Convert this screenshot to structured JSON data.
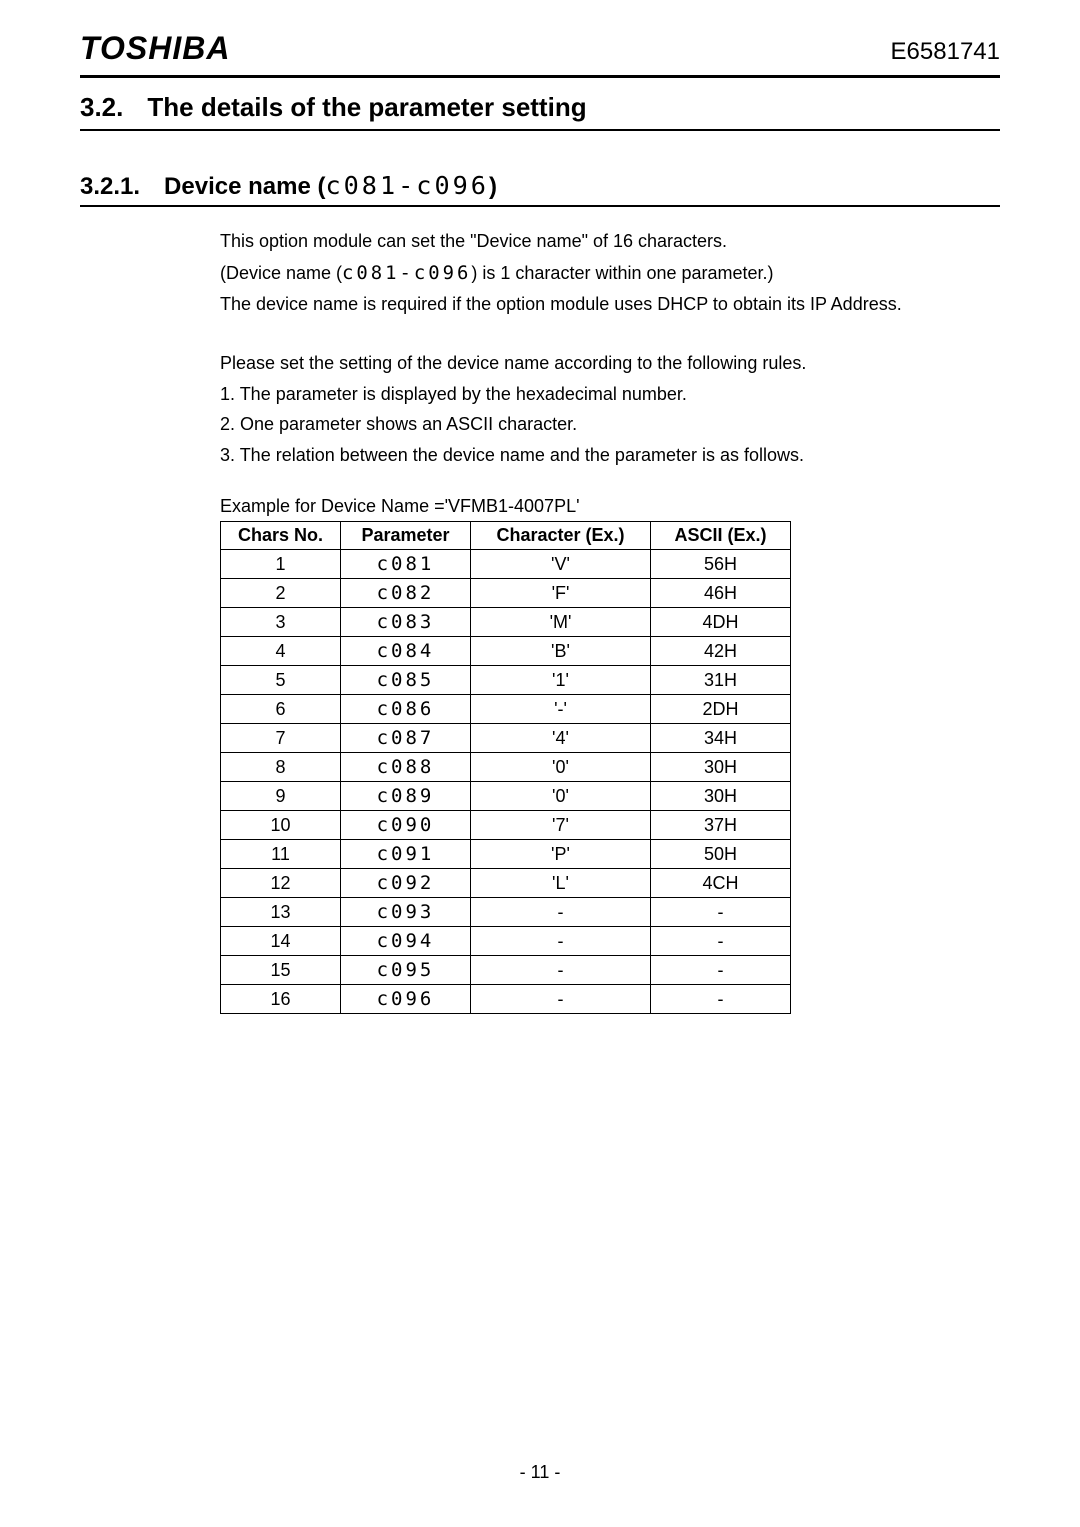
{
  "header": {
    "brand": "TOSHIBA",
    "doc_number": "E6581741"
  },
  "section": {
    "number": "3.2.",
    "title": "The details of the parameter setting"
  },
  "subsection": {
    "number": "3.2.1.",
    "title_prefix": "Device name (",
    "title_seg": "c081-c096",
    "title_suffix": ")"
  },
  "intro": {
    "line1": "This option module can set the \"Device name\" of 16 characters.",
    "line2_prefix": "(Device name (",
    "line2_seg": "c081-c096",
    "line2_suffix": ") is 1 character within one parameter.)",
    "line3": "The device name is required if the option module uses DHCP to obtain its IP Address."
  },
  "rules": {
    "intro": "Please set the setting of the device name according to the following rules.",
    "r1": "1. The parameter is displayed by the hexadecimal number.",
    "r2": "2. One parameter shows an ASCII character.",
    "r3": "3. The relation between the device name and the parameter is as follows."
  },
  "table": {
    "caption": "Example for Device Name ='VFMB1-4007PL'",
    "headers": {
      "chars": "Chars No.",
      "param": "Parameter",
      "char": "Character (Ex.)",
      "ascii": "ASCII (Ex.)"
    },
    "rows": [
      {
        "n": "1",
        "p": "c081",
        "c": "'V'",
        "a": "56H"
      },
      {
        "n": "2",
        "p": "c082",
        "c": "'F'",
        "a": "46H"
      },
      {
        "n": "3",
        "p": "c083",
        "c": "'M'",
        "a": "4DH"
      },
      {
        "n": "4",
        "p": "c084",
        "c": "'B'",
        "a": "42H"
      },
      {
        "n": "5",
        "p": "c085",
        "c": "'1'",
        "a": "31H"
      },
      {
        "n": "6",
        "p": "c086",
        "c": "'-'",
        "a": "2DH"
      },
      {
        "n": "7",
        "p": "c087",
        "c": "'4'",
        "a": "34H"
      },
      {
        "n": "8",
        "p": "c088",
        "c": "'0'",
        "a": "30H"
      },
      {
        "n": "9",
        "p": "c089",
        "c": "'0'",
        "a": "30H"
      },
      {
        "n": "10",
        "p": "c090",
        "c": "'7'",
        "a": "37H"
      },
      {
        "n": "11",
        "p": "c091",
        "c": "'P'",
        "a": "50H"
      },
      {
        "n": "12",
        "p": "c092",
        "c": "'L'",
        "a": "4CH"
      },
      {
        "n": "13",
        "p": "c093",
        "c": "-",
        "a": "-"
      },
      {
        "n": "14",
        "p": "c094",
        "c": "-",
        "a": "-"
      },
      {
        "n": "15",
        "p": "c095",
        "c": "-",
        "a": "-"
      },
      {
        "n": "16",
        "p": "c096",
        "c": "-",
        "a": "-"
      }
    ]
  },
  "footer": {
    "page": "- 11 -"
  }
}
